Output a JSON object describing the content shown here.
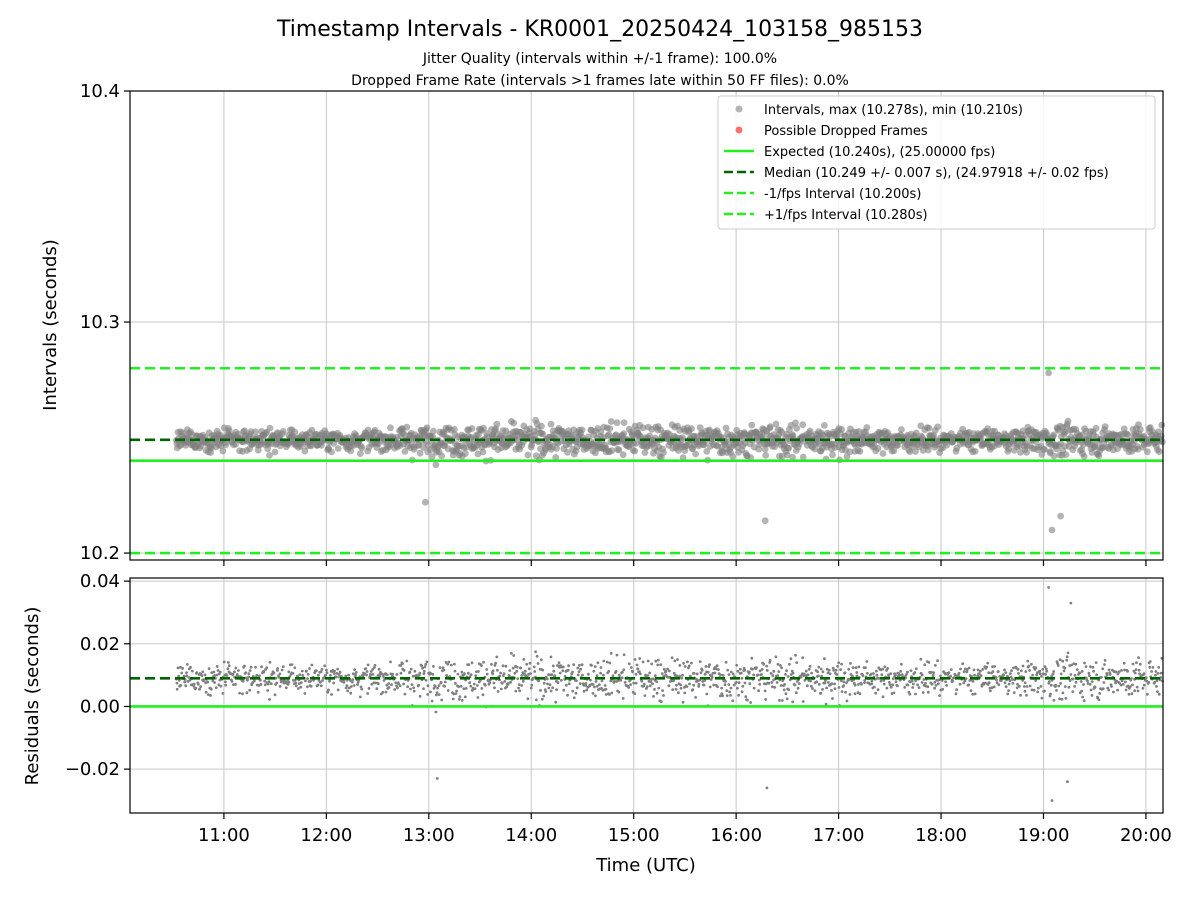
{
  "figure": {
    "title": "Timestamp Intervals - KR0001_20250424_103158_985153",
    "subtitle_1": "Jitter Quality (intervals within +/-1 frame): 100.0%",
    "subtitle_2": "Dropped Frame Rate (intervals >1 frames late within 50 FF files): 0.0%",
    "xlabel": "Time (UTC)"
  },
  "colors": {
    "scatter": "#808080",
    "dropped": "#ff5555",
    "expected": "#22ee22",
    "median": "#006400",
    "interval_bounds": "#22ee22",
    "grid": "#c8c8c8"
  },
  "chart_data": [
    {
      "type": "scatter",
      "panel": "top",
      "ylabel": "Intervals (seconds)",
      "ylim": [
        10.197,
        10.4
      ],
      "xlim": [
        "10:05",
        "20:10"
      ],
      "yticks": [
        {
          "value": 10.2,
          "label": "10.2"
        },
        {
          "value": 10.3,
          "label": "10.3"
        },
        {
          "value": 10.4,
          "label": "10.4"
        }
      ],
      "xticks": [
        {
          "value": "11:00",
          "label": "11:00"
        },
        {
          "value": "12:00",
          "label": "12:00"
        },
        {
          "value": "13:00",
          "label": "13:00"
        },
        {
          "value": "14:00",
          "label": "14:00"
        },
        {
          "value": "15:00",
          "label": "15:00"
        },
        {
          "value": "16:00",
          "label": "16:00"
        },
        {
          "value": "17:00",
          "label": "17:00"
        },
        {
          "value": "18:00",
          "label": "18:00"
        },
        {
          "value": "19:00",
          "label": "19:00"
        },
        {
          "value": "20:00",
          "label": "20:00"
        }
      ],
      "grid": true,
      "legend_position": "top-right",
      "series": [
        {
          "name": "Intervals, max (10.278s), min (10.210s)",
          "kind": "points",
          "center": 10.249,
          "spread": 0.007,
          "x_start": "10:32",
          "x_end": "20:10",
          "max": 10.278,
          "min": 10.21
        },
        {
          "name": "Possible Dropped Frames",
          "kind": "points",
          "count": 0
        },
        {
          "name": "Expected (10.240s), (25.00000 fps)",
          "kind": "hline",
          "y": 10.24,
          "style": "solid"
        },
        {
          "name": "Median (10.249 +/- 0.007 s), (24.97918 +/- 0.02 fps)",
          "kind": "hline",
          "y": 10.249,
          "style": "dashed"
        },
        {
          "name": "-1/fps Interval (10.200s)",
          "kind": "hline",
          "y": 10.2,
          "style": "dashed"
        },
        {
          "name": "+1/fps Interval (10.280s)",
          "kind": "hline",
          "y": 10.28,
          "style": "dashed"
        }
      ]
    },
    {
      "type": "scatter",
      "panel": "bottom",
      "ylabel": "Residuals (seconds)",
      "ylim": [
        -0.034,
        0.041
      ],
      "xlim": [
        "10:05",
        "20:10"
      ],
      "yticks": [
        {
          "value": -0.02,
          "label": "−0.02"
        },
        {
          "value": 0.0,
          "label": "0.00"
        },
        {
          "value": 0.02,
          "label": "0.02"
        },
        {
          "value": 0.04,
          "label": "0.04"
        }
      ],
      "grid": true,
      "series": [
        {
          "kind": "points",
          "center": 0.009,
          "spread": 0.007,
          "x_start": "10:32",
          "x_end": "20:10",
          "max": 0.038,
          "min": -0.03
        },
        {
          "kind": "hline",
          "y": 0.0,
          "style": "solid",
          "ref": "expected"
        },
        {
          "kind": "hline",
          "y": 0.009,
          "style": "dashed",
          "ref": "median"
        }
      ]
    }
  ]
}
